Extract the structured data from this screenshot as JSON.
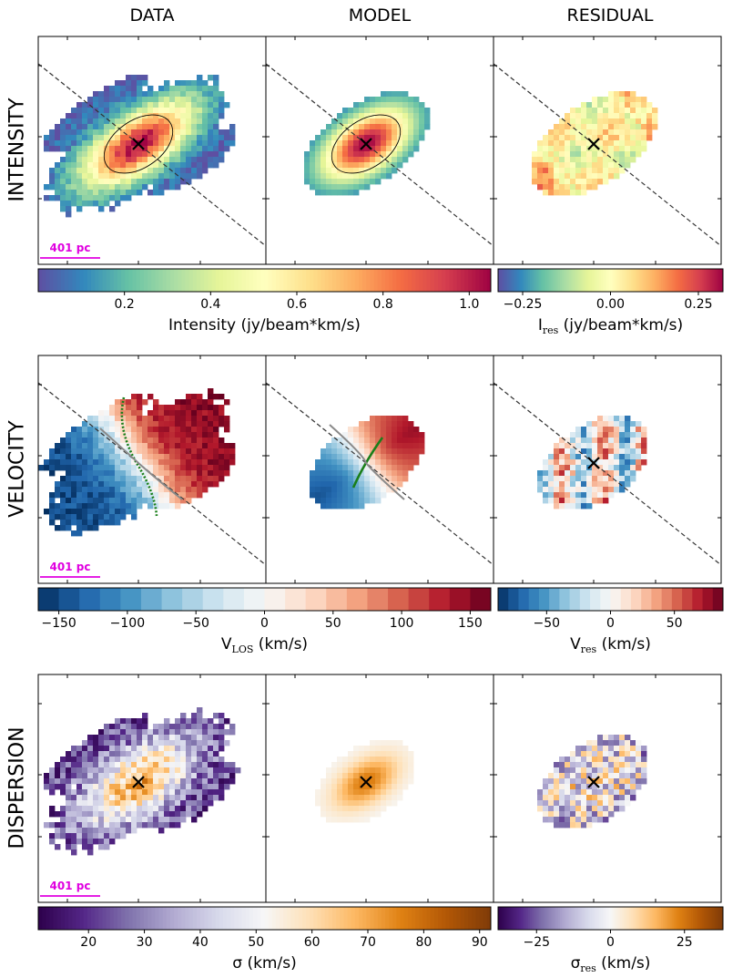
{
  "columns": [
    "DATA",
    "MODEL",
    "RESIDUAL"
  ],
  "rows": [
    "INTENSITY",
    "VELOCITY",
    "DISPERSION"
  ],
  "scale_bar_label": "401 pc",
  "colors": {
    "scale_bar": "#e000e0",
    "pa_line": "#333333",
    "zero_velocity_contour": "#1a7f1a",
    "center_marker": "#000000"
  },
  "chart_data": [
    {
      "type": "heatmap",
      "row": "INTENSITY",
      "panels": [
        "DATA",
        "MODEL",
        "RESIDUAL"
      ],
      "colorbars": [
        {
          "for": [
            "DATA",
            "MODEL"
          ],
          "colormap": "Spectral_r",
          "label": "Intensity (jy/beam*km/s)",
          "range": [
            0.0,
            1.05
          ],
          "ticks": [
            0.2,
            0.4,
            0.6,
            0.8,
            1.0
          ],
          "tick_labels": [
            "0.2",
            "0.4",
            "0.6",
            "0.8",
            "1.0"
          ]
        },
        {
          "for": [
            "RESIDUAL"
          ],
          "colormap": "Spectral_r",
          "label_main": "I",
          "label_sub": "res",
          "label_rest": " (jy/beam*km/s)",
          "range": [
            -0.32,
            0.32
          ],
          "ticks": [
            -0.25,
            0.0,
            0.25
          ],
          "tick_labels": [
            "−0.25",
            "0.00",
            "0.25"
          ]
        }
      ],
      "annotations": [
        "major-axis dashed line",
        "ellipse contour",
        "center cross"
      ]
    },
    {
      "type": "heatmap",
      "row": "VELOCITY",
      "panels": [
        "DATA",
        "MODEL",
        "RESIDUAL"
      ],
      "colorbars": [
        {
          "for": [
            "DATA",
            "MODEL"
          ],
          "colormap": "RdBu_r",
          "discrete": true,
          "label_main": "V",
          "label_sub": "LOS",
          "label_rest": " (km/s)",
          "range": [
            -165,
            165
          ],
          "ticks": [
            -150,
            -100,
            -50,
            0,
            50,
            100,
            150
          ],
          "tick_labels": [
            "−150",
            "−100",
            "−50",
            "0",
            "50",
            "100",
            "150"
          ]
        },
        {
          "for": [
            "RESIDUAL"
          ],
          "colormap": "RdBu_r",
          "discrete": true,
          "label_main": "V",
          "label_sub": "res",
          "label_rest": " (km/s)",
          "range": [
            -88,
            88
          ],
          "ticks": [
            -50,
            0,
            50
          ],
          "tick_labels": [
            "−50",
            "0",
            "50"
          ]
        }
      ],
      "annotations": [
        "major-axis dashed line",
        "zero-velocity green contour",
        "center cross"
      ]
    },
    {
      "type": "heatmap",
      "row": "DISPERSION",
      "panels": [
        "DATA",
        "MODEL",
        "RESIDUAL"
      ],
      "colorbars": [
        {
          "for": [
            "DATA",
            "MODEL"
          ],
          "colormap": "PuOr_r",
          "label": "σ (km/s)",
          "range": [
            11,
            92
          ],
          "ticks": [
            20,
            30,
            40,
            50,
            60,
            70,
            80,
            90
          ],
          "tick_labels": [
            "20",
            "30",
            "40",
            "50",
            "60",
            "70",
            "80",
            "90"
          ]
        },
        {
          "for": [
            "RESIDUAL"
          ],
          "colormap": "PuOr_r",
          "label_main": "σ",
          "label_sub": "res",
          "label_rest": " (km/s)",
          "range": [
            -38,
            38
          ],
          "ticks": [
            -25,
            0,
            25
          ],
          "tick_labels": [
            "−25",
            "0",
            "25"
          ]
        }
      ],
      "annotations": [
        "center cross"
      ]
    }
  ]
}
